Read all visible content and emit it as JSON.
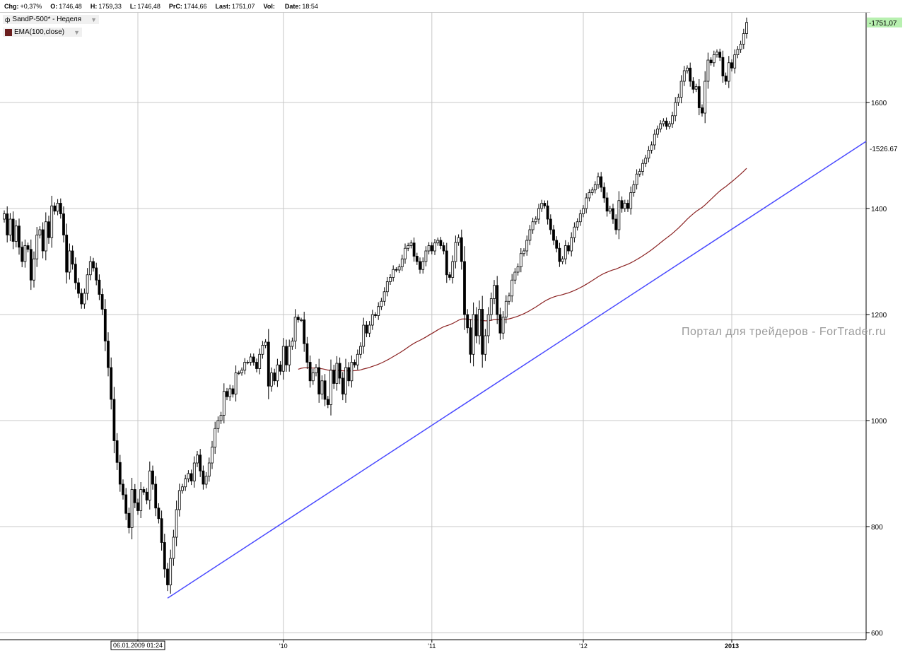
{
  "infobar": [
    {
      "label": "Chg:",
      "value": "+0,37%"
    },
    {
      "label": "O:",
      "value": "1746,48"
    },
    {
      "label": "H:",
      "value": "1759,33"
    },
    {
      "label": "L:",
      "value": "1746,48"
    },
    {
      "label": "PrC:",
      "value": "1744,66"
    },
    {
      "label": "Last:",
      "value": "1751,07"
    },
    {
      "label": "Vol:",
      "value": ""
    },
    {
      "label": "Date:",
      "value": "18:54"
    }
  ],
  "legend": {
    "symbol": "SandP-500* - Неделя",
    "indicator": "EMA(100,close)",
    "indicator_color": "#6b1f1f"
  },
  "watermark": "Портал для трейдеров - ForTrader.ru",
  "colors": {
    "candle": "#000000",
    "trendline": "#4a4aff",
    "ema": "#8b2323",
    "grid": "#c8c8c8",
    "last_label_bg": "#b8f0b0"
  },
  "chart_data": {
    "type": "candlestick",
    "symbol": "SandP-500*",
    "timeframe": "Неделя",
    "y_axis": {
      "ticks": [
        600,
        800,
        1000,
        1200,
        1400,
        1600
      ],
      "range": [
        590,
        1770
      ]
    },
    "x_axis": {
      "labels": [
        "06.01.2009 01:24",
        "'10",
        "'11",
        "'12",
        "2013"
      ],
      "tick_weeks": [
        46,
        95,
        145,
        196,
        246
      ]
    },
    "first_candle_week": 1,
    "closes": [
      1390,
      1350,
      1380,
      1338,
      1367,
      1327,
      1300,
      1330,
      1323,
      1265,
      1305,
      1350,
      1360,
      1320,
      1375,
      1345,
      1405,
      1395,
      1410,
      1390,
      1350,
      1280,
      1320,
      1295,
      1260,
      1240,
      1220,
      1240,
      1275,
      1300,
      1288,
      1265,
      1238,
      1210,
      1150,
      1100,
      1040,
      962,
      921,
      880,
      860,
      825,
      798,
      870,
      845,
      830,
      870,
      865,
      850,
      905,
      880,
      835,
      815,
      770,
      720,
      690,
      740,
      780,
      832,
      868,
      875,
      890,
      900,
      886,
      920,
      935,
      905,
      880,
      895,
      920,
      950,
      985,
      1000,
      1010,
      1055,
      1045,
      1060,
      1050,
      1090,
      1090,
      1095,
      1110,
      1110,
      1120,
      1110,
      1098,
      1125,
      1142,
      1148,
      1065,
      1090,
      1075,
      1105,
      1093,
      1140,
      1105,
      1140,
      1150,
      1195,
      1190,
      1190,
      1145,
      1110,
      1075,
      1090,
      1100,
      1050,
      1075,
      1040,
      1030,
      1095,
      1070,
      1108,
      1080,
      1050,
      1100,
      1075,
      1110,
      1105,
      1125,
      1140,
      1180,
      1165,
      1180,
      1200,
      1198,
      1215,
      1225,
      1243,
      1262,
      1270,
      1285,
      1284,
      1290,
      1305,
      1325,
      1330,
      1335,
      1310,
      1300,
      1285,
      1300,
      1320,
      1330,
      1320,
      1335,
      1340,
      1330,
      1320,
      1275,
      1270,
      1300,
      1336,
      1345,
      1300,
      1200,
      1175,
      1125,
      1200,
      1160,
      1210,
      1125,
      1160,
      1200,
      1230,
      1255,
      1200,
      1165,
      1195,
      1225,
      1235,
      1265,
      1280,
      1290,
      1315,
      1320,
      1340,
      1360,
      1375,
      1380,
      1400,
      1410,
      1405,
      1380,
      1360,
      1340,
      1325,
      1300,
      1305,
      1330,
      1320,
      1345,
      1365,
      1375,
      1390,
      1400,
      1420,
      1430,
      1435,
      1445,
      1460,
      1440,
      1420,
      1395,
      1400,
      1380,
      1360,
      1415,
      1400,
      1410,
      1400,
      1430,
      1445,
      1465,
      1470,
      1485,
      1495,
      1510,
      1520,
      1540,
      1550,
      1560,
      1565,
      1555,
      1560,
      1575,
      1600,
      1610,
      1640,
      1660,
      1665,
      1640,
      1625,
      1630,
      1590,
      1580,
      1640,
      1680,
      1675,
      1690,
      1695,
      1685,
      1650,
      1640,
      1675,
      1665,
      1690,
      1700,
      1710,
      1730,
      1751
    ]
  }
}
